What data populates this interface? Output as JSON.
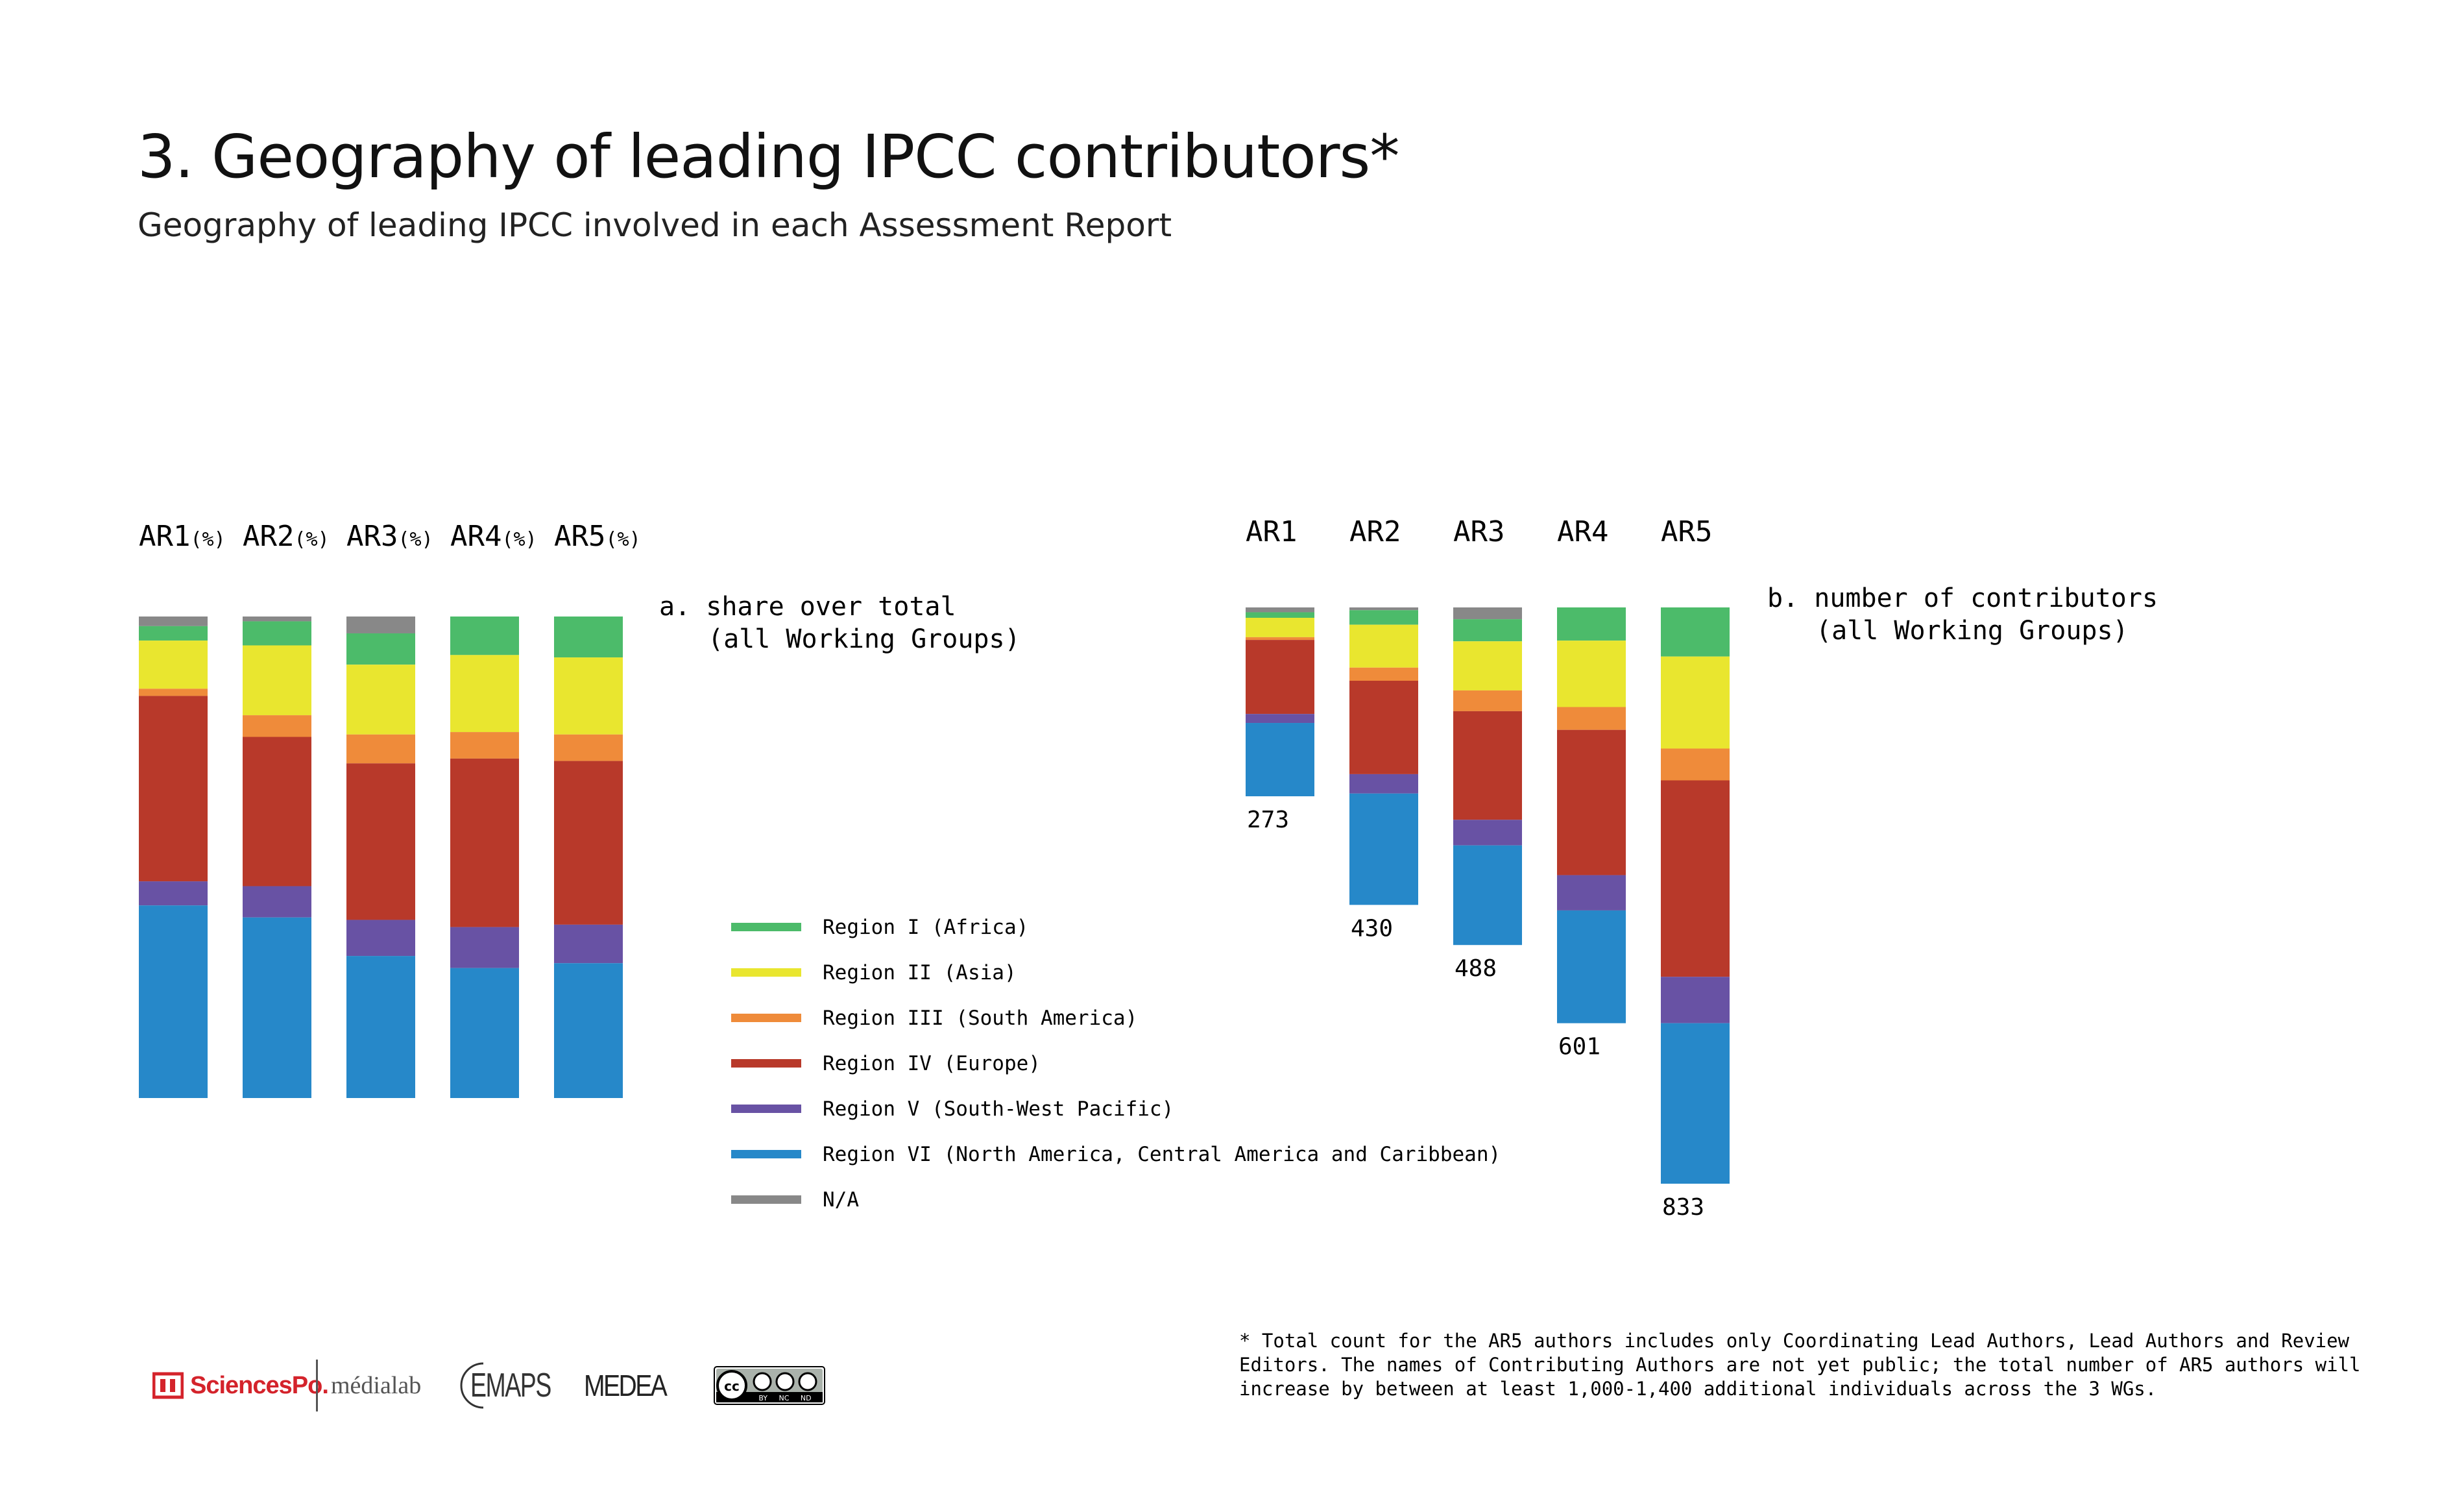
{
  "title": "3. Geography of leading IPCC contributors*",
  "subtitle": "Geography of leading IPCC involved in each Assessment Report",
  "footnote": "* Total count for the AR5 authors includes only Coordinating Lead Authors, Lead Authors and Review Editors. The names of Contributing Authors are not yet public; the total number of AR5 authors will increase by between at least 1,000-1,400 additional individuals across the 3 WGs.",
  "colors": {
    "Region I (Africa)": "#4cbb6a",
    "Region II (Asia)": "#e9e62f",
    "Region III (South America)": "#ef8b3a",
    "Region IV (Europe)": "#b8392a",
    "Region V (South-West Pacific)": "#6852a4",
    "Region VI (North America, Central America and Caribbean)": "#2688c9",
    "N/A": "#888888"
  },
  "logos": {
    "sciencespo": "SciencesPo.",
    "medialab": "médialab",
    "emaps": "EMAPS",
    "medea": "MEDEA",
    "cc": "BY NC ND"
  },
  "chart_data": [
    {
      "type": "bar",
      "stacked": true,
      "orientation": "vertical",
      "panel_label": "a. share over total\n(all Working Groups)",
      "unit_suffix": "(%)",
      "categories": [
        "AR1",
        "AR2",
        "AR3",
        "AR4",
        "AR5"
      ],
      "ylim": [
        0,
        100
      ],
      "stack_order_top_to_bottom": [
        "N/A",
        "Region I (Africa)",
        "Region II (Asia)",
        "Region III (South America)",
        "Region IV (Europe)",
        "Region V (South-West Pacific)",
        "Region VI (North America, Central America and Caribbean)"
      ],
      "series": [
        {
          "name": "N/A",
          "values": [
            2,
            1,
            3.5,
            0,
            0
          ]
        },
        {
          "name": "Region I (Africa)",
          "values": [
            3,
            5,
            6.5,
            8,
            8.5
          ]
        },
        {
          "name": "Region II (Asia)",
          "values": [
            10,
            14.5,
            14.5,
            16,
            16
          ]
        },
        {
          "name": "Region III (South America)",
          "values": [
            1.5,
            4.5,
            6,
            5.5,
            5.5
          ]
        },
        {
          "name": "Region IV (Europe)",
          "values": [
            38.5,
            31,
            32.5,
            35,
            34
          ]
        },
        {
          "name": "Region V (South-West Pacific)",
          "values": [
            5,
            6.5,
            7.5,
            8.5,
            8
          ]
        },
        {
          "name": "Region VI (North America, Central America and Caribbean)",
          "values": [
            40,
            37.5,
            29.5,
            27,
            28
          ]
        }
      ],
      "legend": [
        "Region I (Africa)",
        "Region II (Asia)",
        "Region III (South America)",
        "Region IV (Europe)",
        "Region V (South-West Pacific)",
        "Region VI (North America, Central America and Caribbean)",
        "N/A"
      ]
    },
    {
      "type": "bar",
      "stacked": true,
      "orientation": "vertical",
      "panel_label": "b. number of contributors\n(all Working Groups)",
      "categories": [
        "AR1",
        "AR2",
        "AR3",
        "AR4",
        "AR5"
      ],
      "totals": [
        273,
        430,
        488,
        601,
        833
      ],
      "series": [
        {
          "name": "N/A",
          "values": [
            7,
            4,
            17,
            0,
            0
          ]
        },
        {
          "name": "Region I (Africa)",
          "values": [
            8,
            21,
            32,
            48,
            71
          ]
        },
        {
          "name": "Region II (Asia)",
          "values": [
            28,
            62,
            71,
            96,
            133
          ]
        },
        {
          "name": "Region III (South America)",
          "values": [
            4,
            19,
            30,
            33,
            46
          ]
        },
        {
          "name": "Region IV (Europe)",
          "values": [
            107,
            135,
            157,
            210,
            284
          ]
        },
        {
          "name": "Region V (South-West Pacific)",
          "values": [
            13,
            28,
            37,
            51,
            67
          ]
        },
        {
          "name": "Region VI (North America, Central America and Caribbean)",
          "values": [
            106,
            161,
            144,
            163,
            232
          ]
        }
      ]
    }
  ]
}
